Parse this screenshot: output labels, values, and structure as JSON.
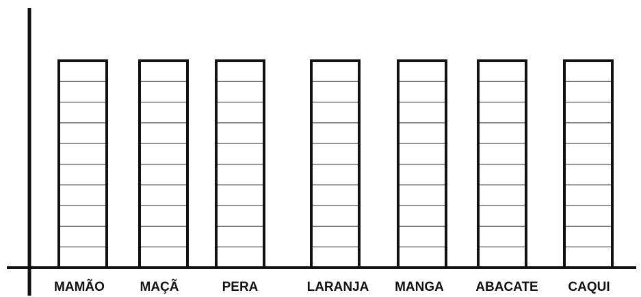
{
  "chart_data": {
    "type": "bar",
    "categories": [
      "MAMÃO",
      "MAÇÃ",
      "PERA",
      "LARANJA",
      "MANGA",
      "ABACATE",
      "CAQUI"
    ],
    "grid_rows": 10,
    "values": [
      null,
      null,
      null,
      null,
      null,
      null,
      null
    ],
    "bar_style": "empty outlined columns divided into horizontal cells",
    "grid": true,
    "legend": "none",
    "colors": {
      "stroke": "#111111",
      "grid_line": "#555555",
      "background": "#ffffff"
    }
  }
}
